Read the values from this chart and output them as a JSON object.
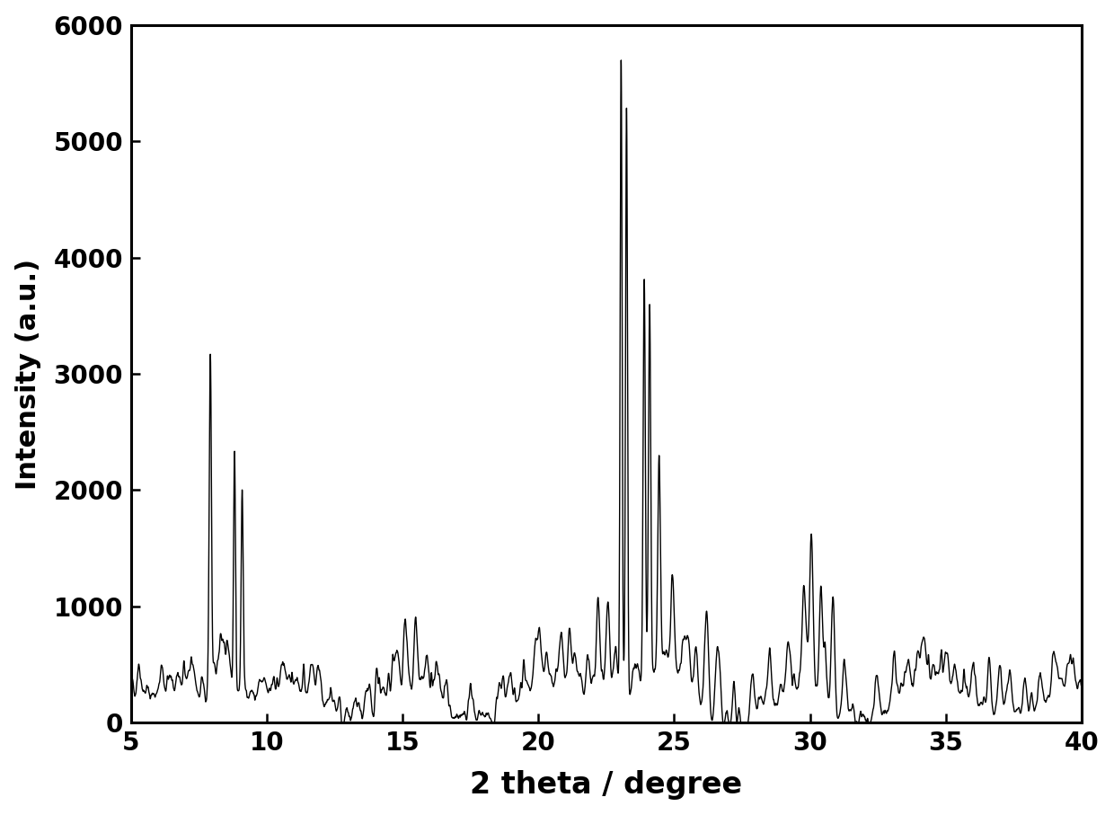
{
  "xlabel": "2 theta / degree",
  "ylabel": "Intensity (a.u.)",
  "xlim": [
    5,
    40
  ],
  "ylim": [
    0,
    6000
  ],
  "yticks": [
    0,
    1000,
    2000,
    3000,
    4000,
    5000,
    6000
  ],
  "xticks": [
    5,
    10,
    15,
    20,
    25,
    30,
    35,
    40
  ],
  "line_color": "#000000",
  "line_width": 1.0,
  "background_color": "#ffffff",
  "xlabel_fontsize": 24,
  "ylabel_fontsize": 22,
  "tick_fontsize": 20
}
